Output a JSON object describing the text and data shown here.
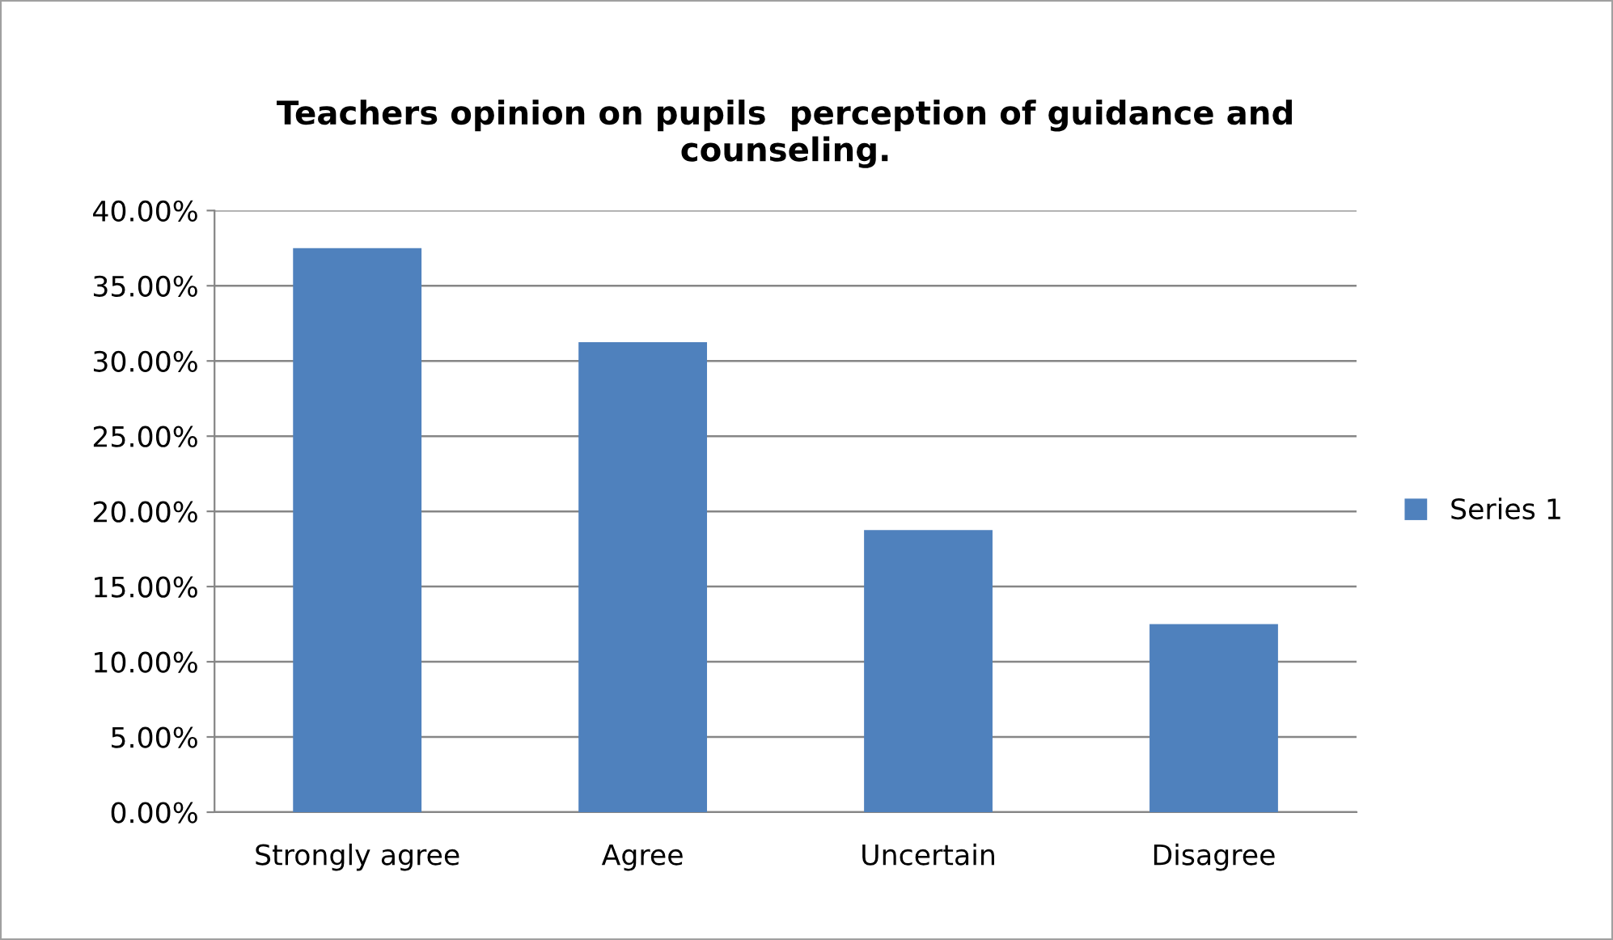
{
  "chart_data": {
    "type": "bar",
    "title": "Teachers opinion on pupils  perception of guidance and\ncounseling.",
    "categories": [
      "Strongly agree",
      "Agree",
      "Uncertain",
      "Disagree"
    ],
    "series": [
      {
        "name": "Series 1",
        "color": "#4f81bd",
        "values": [
          37.5,
          31.25,
          18.75,
          12.5
        ]
      }
    ],
    "ylim": [
      0,
      40
    ],
    "yticks": [
      {
        "value": 0,
        "label": "0.00%"
      },
      {
        "value": 5,
        "label": "5.00%"
      },
      {
        "value": 10,
        "label": "10.00%"
      },
      {
        "value": 15,
        "label": "15.00%"
      },
      {
        "value": 20,
        "label": "20.00%"
      },
      {
        "value": 25,
        "label": "25.00%"
      },
      {
        "value": 30,
        "label": "30.00%"
      },
      {
        "value": 35,
        "label": "35.00%"
      },
      {
        "value": 40,
        "label": "40.00%"
      }
    ],
    "grid": "y",
    "legend": "right"
  }
}
